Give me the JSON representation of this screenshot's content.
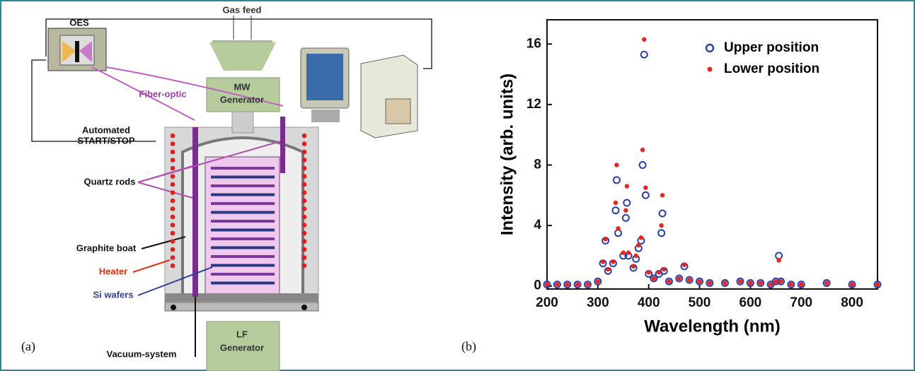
{
  "diagram": {
    "labels": [
      "OES",
      "Gas feed",
      "MW",
      "Generator",
      "Fiber-optic",
      "Automated",
      "START/STOP",
      "Quartz rods",
      "Graphite boat",
      "Heater",
      "Si wafers",
      "Vacuum-system",
      "LF",
      "Generator"
    ],
    "panel_a": "(a)",
    "panel_b": "(b)"
  },
  "chart_data": {
    "type": "scatter",
    "xlabel": "Wavelength (nm)",
    "ylabel": "Intensity (arb. units)",
    "xlim": [
      200,
      850
    ],
    "ylim": [
      -0.2,
      17.6
    ],
    "xticks": [
      200,
      300,
      400,
      500,
      600,
      700,
      800
    ],
    "yticks": [
      0,
      4,
      8,
      12,
      16
    ],
    "legend": "upper right",
    "x": [
      200,
      220,
      240,
      260,
      280,
      300,
      310,
      315,
      320,
      330,
      335,
      337,
      340,
      350,
      355,
      357,
      360,
      370,
      375,
      380,
      385,
      388,
      391,
      394,
      400,
      410,
      420,
      425,
      427,
      430,
      440,
      460,
      470,
      480,
      500,
      520,
      550,
      580,
      600,
      620,
      640,
      650,
      656,
      660,
      680,
      700,
      750,
      800,
      850
    ],
    "series": [
      {
        "name": "Upper position",
        "color": "#2b3fa8",
        "marker": "open-circle",
        "values": [
          0.1,
          0.1,
          0.1,
          0.1,
          0.1,
          0.3,
          1.5,
          3.0,
          1.0,
          1.5,
          5.0,
          7.0,
          3.5,
          2.0,
          4.5,
          5.5,
          2.0,
          1.2,
          1.8,
          2.5,
          3.0,
          8.0,
          15.3,
          6.0,
          0.8,
          0.5,
          0.8,
          3.5,
          4.8,
          1.0,
          0.3,
          0.5,
          1.3,
          0.4,
          0.3,
          0.2,
          0.2,
          0.3,
          0.2,
          0.2,
          0.1,
          0.3,
          2.0,
          0.3,
          0.1,
          0.1,
          0.2,
          0.1,
          0.1
        ]
      },
      {
        "name": "Lower position",
        "color": "#e8261f",
        "marker": "dot",
        "values": [
          0.1,
          0.1,
          0.1,
          0.1,
          0.1,
          0.3,
          1.6,
          3.1,
          1.1,
          1.6,
          5.5,
          8.0,
          3.8,
          2.2,
          5.0,
          6.6,
          2.2,
          1.3,
          2.0,
          2.7,
          3.2,
          9.0,
          16.3,
          6.5,
          0.9,
          0.5,
          0.9,
          4.0,
          6.0,
          1.1,
          0.3,
          0.5,
          1.4,
          0.4,
          0.3,
          0.2,
          0.2,
          0.3,
          0.2,
          0.2,
          0.1,
          0.3,
          1.7,
          0.3,
          0.1,
          0.1,
          0.2,
          0.1,
          0.1
        ]
      }
    ]
  }
}
